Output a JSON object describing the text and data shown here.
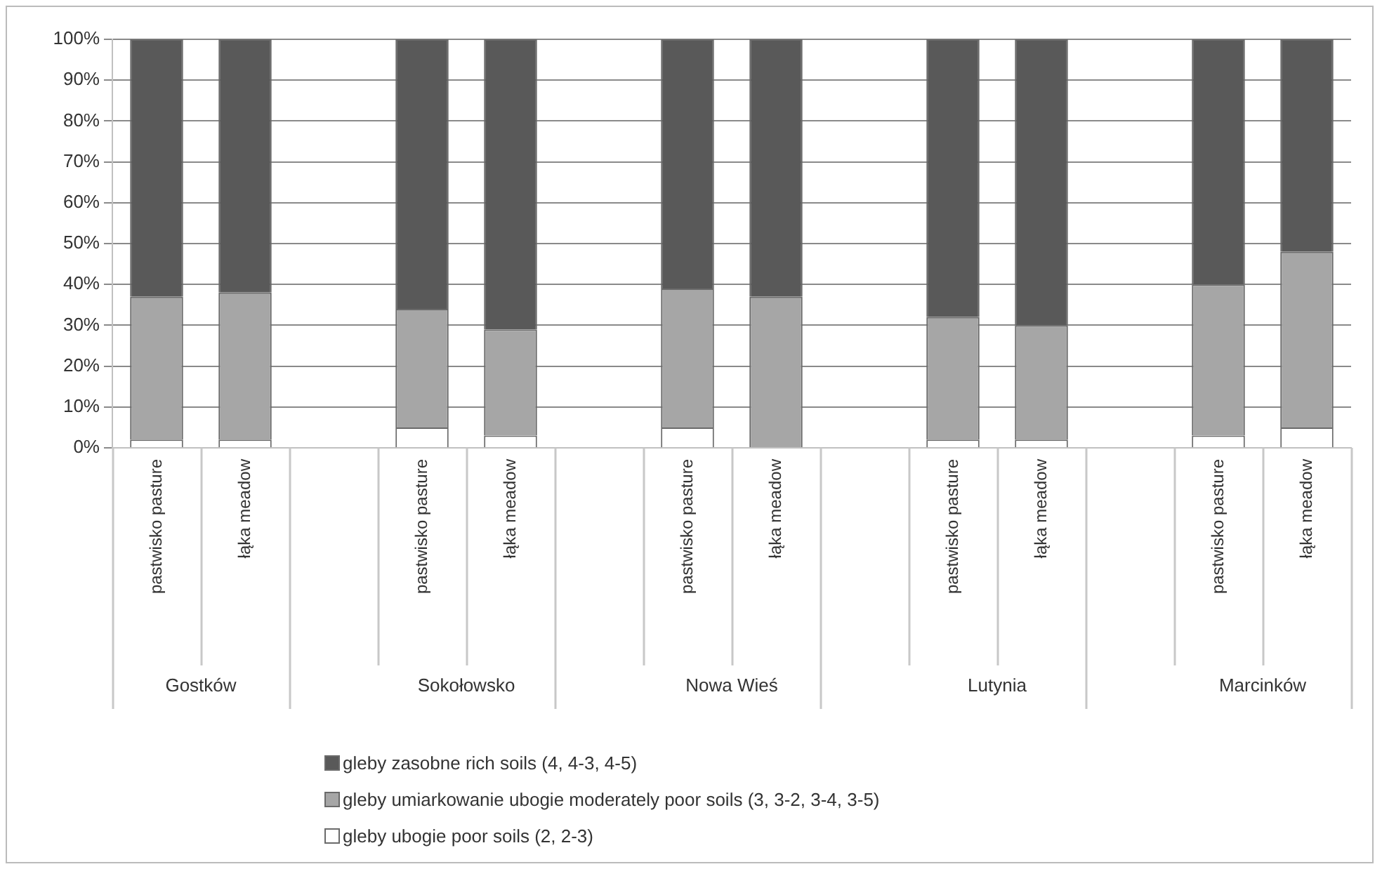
{
  "chart_data": {
    "type": "bar",
    "stacked": true,
    "grid": "y",
    "legend": "bottom",
    "categories": [
      "pastwisko pasture",
      "łąka meadow",
      null,
      "pastwisko pasture",
      "łąka meadow",
      null,
      "pastwisko pasture",
      "łąka meadow",
      null,
      "pastwisko pasture",
      "łąka meadow",
      null,
      "pastwisko pasture",
      "łąka meadow"
    ],
    "series": [
      {
        "name": "gleby ubogie poor soils (2, 2-3)",
        "color": "#ffffff",
        "values": [
          2,
          2,
          null,
          5,
          3,
          null,
          5,
          0,
          null,
          2,
          2,
          null,
          3,
          5
        ]
      },
      {
        "name": "gleby umiarkowanie ubogie moderately poor soils (3, 3-2, 3-4, 3-5)",
        "color": "#a6a6a6",
        "values": [
          35,
          36,
          null,
          29,
          26,
          null,
          34,
          37,
          null,
          30,
          28,
          null,
          37,
          43
        ]
      },
      {
        "name": "gleby zasobne rich soils (4, 4-3, 4-5)",
        "color": "#595959",
        "values": [
          63,
          62,
          null,
          66,
          71,
          null,
          61,
          63,
          null,
          68,
          70,
          null,
          60,
          52
        ]
      }
    ],
    "ylim": [
      0,
      100
    ],
    "yticks": [
      {
        "value": 0,
        "label": "0%"
      },
      {
        "value": 10,
        "label": "10%"
      },
      {
        "value": 20,
        "label": "20%"
      },
      {
        "value": 30,
        "label": "30%"
      },
      {
        "value": 40,
        "label": "40%"
      },
      {
        "value": 50,
        "label": "50%"
      },
      {
        "value": 60,
        "label": "60%"
      },
      {
        "value": 70,
        "label": "70%"
      },
      {
        "value": 80,
        "label": "80%"
      },
      {
        "value": 90,
        "label": "90%"
      },
      {
        "value": 100,
        "label": "100%"
      }
    ],
    "annotations": [
      "Gostków",
      "Sokołowsko",
      "Nowa Wieś",
      "Lutynia",
      "Marcinków"
    ]
  }
}
